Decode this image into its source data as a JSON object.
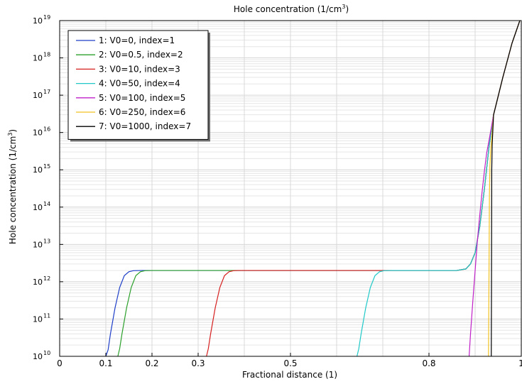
{
  "chart_data": {
    "type": "line",
    "title": "Hole concentration (1/cm",
    "title_sup": "3",
    "title_tail": ")",
    "xlabel": "Fractional distance (1)",
    "ylabel": "Hole concentration (1/cm",
    "ylabel_sup": "3",
    "ylabel_tail": ")",
    "xlim": [
      0,
      1
    ],
    "ylim": [
      10000000000.0,
      1e+19
    ],
    "yscale": "log",
    "grid": true,
    "legend_position": "top-left",
    "x_ticks": [
      {
        "value": 0,
        "label": "0"
      },
      {
        "value": 0.1,
        "label": "0.1"
      },
      {
        "value": 0.2,
        "label": "0.2"
      },
      {
        "value": 0.3,
        "label": "0.3"
      },
      {
        "value": 0.5,
        "label": "0.5"
      },
      {
        "value": 0.8,
        "label": "0.8"
      },
      {
        "value": 1,
        "label": "1"
      }
    ],
    "y_ticks": [
      {
        "value": 10000000000.0,
        "base": "10",
        "exp": "10"
      },
      {
        "value": 100000000000.0,
        "base": "10",
        "exp": "11"
      },
      {
        "value": 1000000000000.0,
        "base": "10",
        "exp": "12"
      },
      {
        "value": 10000000000000.0,
        "base": "10",
        "exp": "13"
      },
      {
        "value": 100000000000000.0,
        "base": "10",
        "exp": "14"
      },
      {
        "value": 1000000000000000.0,
        "base": "10",
        "exp": "15"
      },
      {
        "value": 1e+16,
        "base": "10",
        "exp": "16"
      },
      {
        "value": 1e+17,
        "base": "10",
        "exp": "17"
      },
      {
        "value": 1e+18,
        "base": "10",
        "exp": "18"
      },
      {
        "value": 1e+19,
        "base": "10",
        "exp": "19"
      }
    ],
    "series": [
      {
        "name": "1: V0=0, index=1",
        "color": "#1f3fc8",
        "points": [
          [
            0.1,
            10000000000.0
          ],
          [
            0.105,
            15000000000.0
          ],
          [
            0.11,
            40000000000.0
          ],
          [
            0.12,
            200000000000.0
          ],
          [
            0.13,
            700000000000.0
          ],
          [
            0.14,
            1450000000000.0
          ],
          [
            0.15,
            1850000000000.0
          ],
          [
            0.16,
            1980000000000.0
          ],
          [
            0.18,
            2000000000000.0
          ],
          [
            0.3,
            2000000000000.0
          ],
          [
            0.5,
            2000000000000.0
          ],
          [
            0.7,
            2000000000000.0
          ],
          [
            0.8,
            2000000000000.0
          ],
          [
            0.86,
            2000000000000.0
          ],
          [
            0.88,
            2200000000000.0
          ],
          [
            0.89,
            3000000000000.0
          ],
          [
            0.9,
            6000000000000.0
          ],
          [
            0.91,
            30000000000000.0
          ],
          [
            0.92,
            300000000000000.0
          ],
          [
            0.93,
            4000000000000000.0
          ],
          [
            0.94,
            3e+16
          ],
          [
            0.96,
            3e+17
          ],
          [
            0.98,
            2.5e+18
          ],
          [
            1.0,
            1.3e+19
          ]
        ]
      },
      {
        "name": "2: V0=0.5, index=2",
        "color": "#2ca02c",
        "points": [
          [
            0.126,
            10000000000.0
          ],
          [
            0.13,
            16000000000.0
          ],
          [
            0.135,
            40000000000.0
          ],
          [
            0.145,
            200000000000.0
          ],
          [
            0.155,
            700000000000.0
          ],
          [
            0.165,
            1450000000000.0
          ],
          [
            0.175,
            1850000000000.0
          ],
          [
            0.185,
            1980000000000.0
          ],
          [
            0.2,
            2000000000000.0
          ],
          [
            0.3,
            2000000000000.0
          ],
          [
            0.5,
            2000000000000.0
          ],
          [
            0.7,
            2000000000000.0
          ],
          [
            0.8,
            2000000000000.0
          ],
          [
            0.86,
            2000000000000.0
          ],
          [
            0.88,
            2200000000000.0
          ],
          [
            0.89,
            3000000000000.0
          ],
          [
            0.9,
            6000000000000.0
          ],
          [
            0.91,
            30000000000000.0
          ],
          [
            0.92,
            300000000000000.0
          ],
          [
            0.93,
            4000000000000000.0
          ],
          [
            0.94,
            3e+16
          ],
          [
            0.96,
            3e+17
          ],
          [
            0.98,
            2.5e+18
          ],
          [
            1.0,
            1.3e+19
          ]
        ]
      },
      {
        "name": "3: V0=10, index=3",
        "color": "#d62020",
        "points": [
          [
            0.318,
            10000000000.0
          ],
          [
            0.322,
            16000000000.0
          ],
          [
            0.327,
            40000000000.0
          ],
          [
            0.337,
            200000000000.0
          ],
          [
            0.347,
            700000000000.0
          ],
          [
            0.357,
            1450000000000.0
          ],
          [
            0.367,
            1850000000000.0
          ],
          [
            0.377,
            1980000000000.0
          ],
          [
            0.39,
            2000000000000.0
          ],
          [
            0.5,
            2000000000000.0
          ],
          [
            0.7,
            2000000000000.0
          ],
          [
            0.8,
            2000000000000.0
          ],
          [
            0.86,
            2000000000000.0
          ],
          [
            0.88,
            2200000000000.0
          ],
          [
            0.89,
            3000000000000.0
          ],
          [
            0.9,
            6000000000000.0
          ],
          [
            0.91,
            30000000000000.0
          ],
          [
            0.92,
            300000000000000.0
          ],
          [
            0.93,
            4000000000000000.0
          ],
          [
            0.94,
            3e+16
          ],
          [
            0.96,
            3e+17
          ],
          [
            0.98,
            2.5e+18
          ],
          [
            1.0,
            1.3e+19
          ]
        ]
      },
      {
        "name": "4: V0=50, index=4",
        "color": "#20c8c8",
        "points": [
          [
            0.644,
            10000000000.0
          ],
          [
            0.648,
            16000000000.0
          ],
          [
            0.653,
            40000000000.0
          ],
          [
            0.663,
            200000000000.0
          ],
          [
            0.673,
            700000000000.0
          ],
          [
            0.683,
            1450000000000.0
          ],
          [
            0.693,
            1850000000000.0
          ],
          [
            0.703,
            1980000000000.0
          ],
          [
            0.72,
            2000000000000.0
          ],
          [
            0.8,
            2000000000000.0
          ],
          [
            0.86,
            2000000000000.0
          ],
          [
            0.88,
            2200000000000.0
          ],
          [
            0.89,
            3000000000000.0
          ],
          [
            0.9,
            6000000000000.0
          ],
          [
            0.91,
            30000000000000.0
          ],
          [
            0.92,
            300000000000000.0
          ],
          [
            0.93,
            4000000000000000.0
          ],
          [
            0.94,
            3e+16
          ],
          [
            0.96,
            3e+17
          ],
          [
            0.98,
            2.5e+18
          ],
          [
            1.0,
            1.3e+19
          ]
        ]
      },
      {
        "name": "5: V0=100, index=5",
        "color": "#c020c8",
        "points": [
          [
            0.887,
            10000000000.0
          ],
          [
            0.89,
            40000000000.0
          ],
          [
            0.895,
            300000000000.0
          ],
          [
            0.9,
            2000000000000.0
          ],
          [
            0.905,
            13000000000000.0
          ],
          [
            0.91,
            60000000000000.0
          ],
          [
            0.915,
            250000000000000.0
          ],
          [
            0.92,
            900000000000000.0
          ],
          [
            0.925,
            2800000000000000.0
          ],
          [
            0.93,
            6000000000000000.0
          ],
          [
            0.94,
            3e+16
          ],
          [
            0.96,
            3e+17
          ],
          [
            0.98,
            2.5e+18
          ],
          [
            1.0,
            1.3e+19
          ]
        ]
      },
      {
        "name": "6: V0=250, index=6",
        "color": "#f0c020",
        "points": [
          [
            0.929,
            10000000000.0
          ],
          [
            0.93,
            1000000000000.0
          ],
          [
            0.931,
            200000000000000.0
          ],
          [
            0.932,
            1200000000000000.0
          ],
          [
            0.934,
            3500000000000000.0
          ],
          [
            0.94,
            3e+16
          ],
          [
            0.96,
            3e+17
          ],
          [
            0.98,
            2.5e+18
          ],
          [
            1.0,
            1.3e+19
          ]
        ]
      },
      {
        "name": "7: V0=1000, index=7",
        "color": "#000000",
        "points": [
          [
            0.935,
            10000000000.0
          ],
          [
            0.9355,
            1000000000000.0
          ],
          [
            0.936,
            1000000000000000.0
          ],
          [
            0.937,
            5000000000000000.0
          ],
          [
            0.94,
            3e+16
          ],
          [
            0.96,
            3e+17
          ],
          [
            0.98,
            2.5e+18
          ],
          [
            1.0,
            1.3e+19
          ]
        ]
      }
    ]
  }
}
